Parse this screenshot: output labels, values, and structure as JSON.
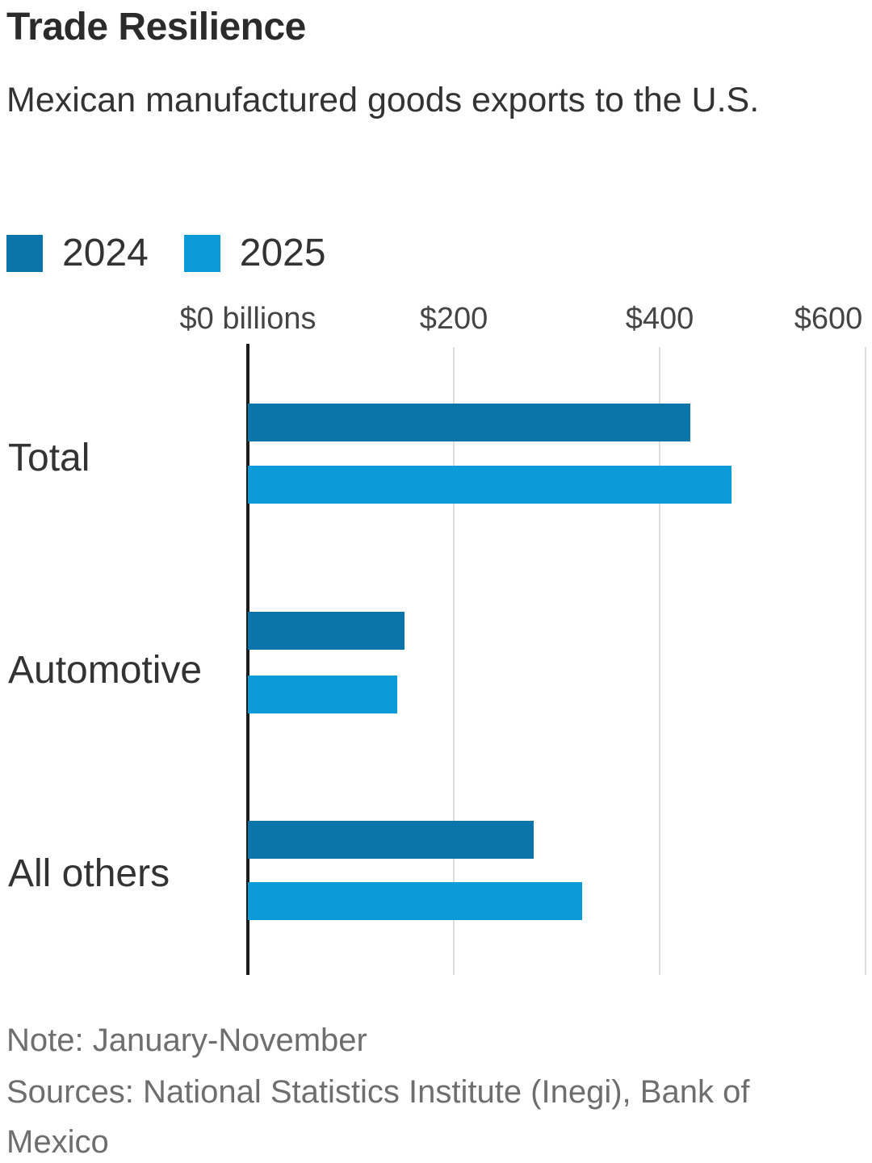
{
  "header": {
    "title": "Trade Resilience",
    "subtitle": "Mexican manufactured goods exports to the U.S."
  },
  "legend": {
    "items": [
      {
        "label": "2024",
        "color": "#0b75a9"
      },
      {
        "label": "2025",
        "color": "#0c9ad9"
      }
    ]
  },
  "chart_data": {
    "type": "bar",
    "orientation": "horizontal",
    "title": "Trade Resilience",
    "subtitle": "Mexican manufactured goods exports to the U.S.",
    "unit": "$ billions",
    "categories": [
      "Total",
      "Automotive",
      "All others"
    ],
    "series": [
      {
        "name": "2024",
        "color": "#0b75a9",
        "values": [
          430,
          152,
          278
        ]
      },
      {
        "name": "2025",
        "color": "#0c9ad9",
        "values": [
          470,
          145,
          325
        ]
      }
    ],
    "xlim": [
      0,
      600
    ],
    "xtick_values": [
      0,
      200,
      400,
      600
    ],
    "xtick_labels": [
      "$0 billions",
      "$200",
      "$400",
      "$600"
    ],
    "grid": true,
    "legend_position": "top-left"
  },
  "footer": {
    "note": "Note: January-November",
    "sources": "Sources: National Statistics Institute (Inegi), Bank of Mexico"
  },
  "colors": {
    "axis": "#1c1c1c",
    "gridline": "#dcdcdc",
    "title_text": "#2b2b2b",
    "body_text": "#333333",
    "tick_text": "#454545",
    "muted_text": "#6e6e6e"
  }
}
